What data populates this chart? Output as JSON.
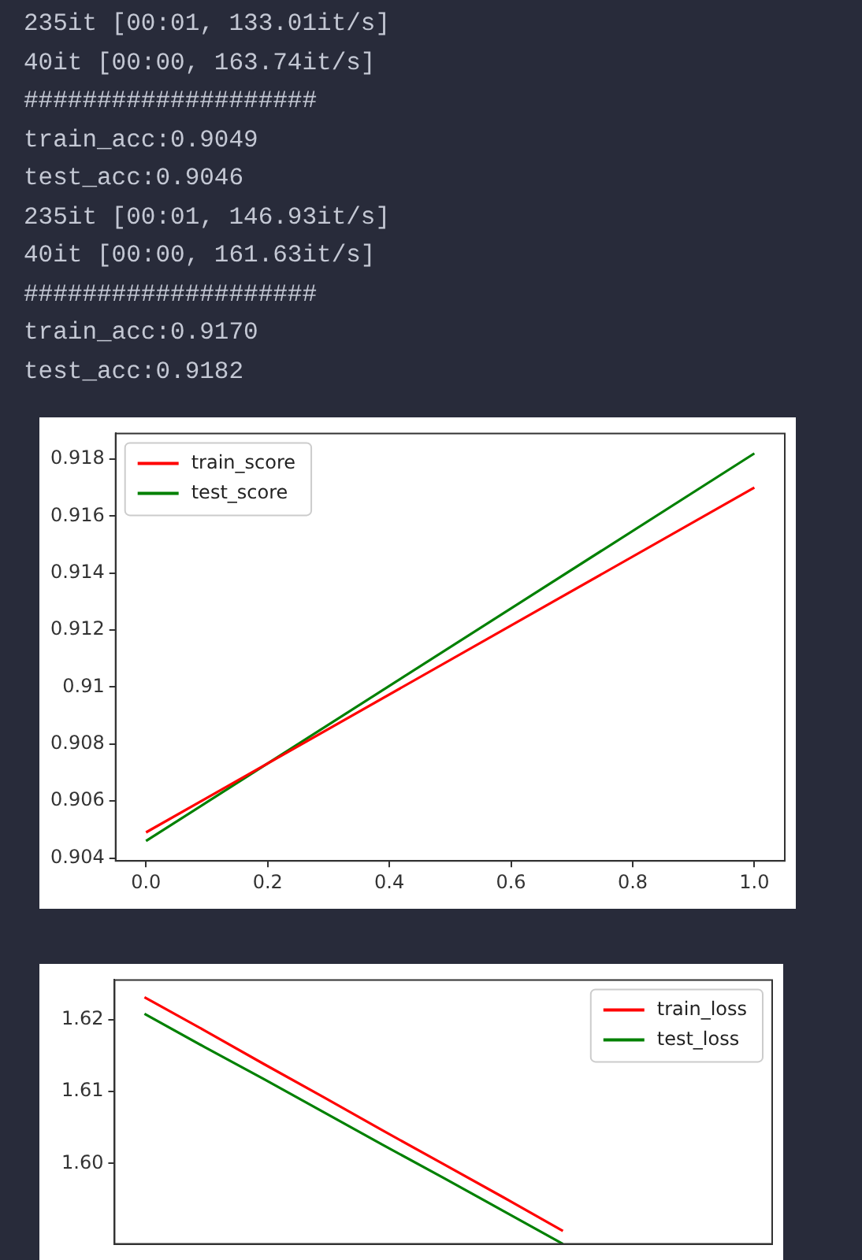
{
  "chart_data": [
    {
      "type": "line",
      "annotations": [
        "235it [00:01, 133.01it/s]",
        "40it [00:00, 163.74it/s]",
        "####################",
        "train_acc:0.9049",
        "test_acc:0.9046",
        "235it [00:01, 146.93it/s]",
        "40it [00:00, 161.63it/s]",
        "####################",
        "train_acc:0.9170",
        "test_acc:0.9182"
      ],
      "x": [
        0,
        1
      ],
      "series": [
        {
          "name": "train_score",
          "color": "#ff0000",
          "values": [
            0.9049,
            0.917
          ]
        },
        {
          "name": "test_score",
          "color": "#008000",
          "values": [
            0.9046,
            0.9182
          ]
        }
      ],
      "xlim": [
        -0.05,
        1.05
      ],
      "xticks": [
        {
          "value": 0,
          "label": "0.0"
        },
        {
          "value": 0.2,
          "label": "0.2"
        },
        {
          "value": 0.4,
          "label": "0.4"
        },
        {
          "value": 0.6,
          "label": "0.6"
        },
        {
          "value": 0.8,
          "label": "0.8"
        },
        {
          "value": 1,
          "label": "1.0"
        }
      ],
      "ylim": [
        0.9039,
        0.9189
      ],
      "yticks": [
        0.904,
        0.906,
        0.908,
        0.91,
        0.912,
        0.914,
        0.916,
        0.918
      ],
      "legend": "top left",
      "grid": false
    },
    {
      "type": "line",
      "series": [
        {
          "name": "train_loss",
          "color": "#ff0000",
          "values": [
            1.6231,
            1.6185,
            1.6138,
            1.6092,
            1.6045,
            1.5999,
            1.5953,
            1.5906,
            null,
            null,
            null
          ]
        },
        {
          "name": "test_loss",
          "color": "#008000",
          "values": [
            1.6208,
            1.6162,
            1.6117,
            1.6071,
            1.6025,
            1.598,
            1.5934,
            1.5888,
            null,
            null,
            null
          ]
        }
      ],
      "categories": [
        null,
        null,
        null,
        null,
        null,
        null,
        null,
        null,
        null,
        null,
        null
      ],
      "tick_labels": "y",
      "ylim": [
        1.5888,
        1.6255
      ],
      "yticks": [
        {
          "value": 1.6,
          "label": "1.60"
        },
        1.61,
        1.62
      ],
      "legend": "top right",
      "grid": false
    }
  ]
}
